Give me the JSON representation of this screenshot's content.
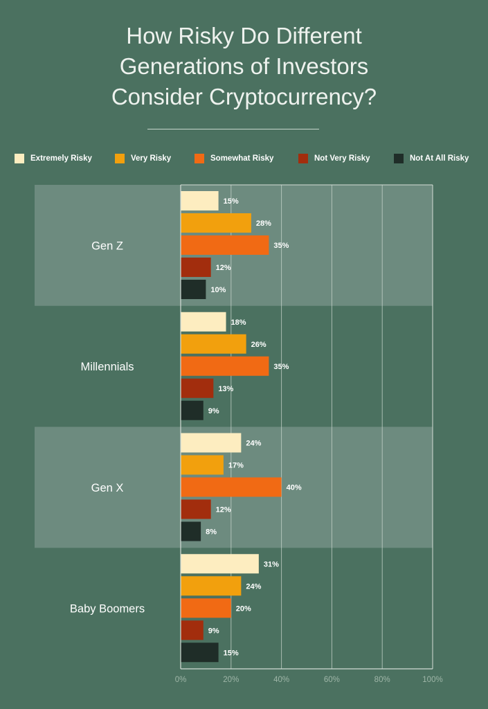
{
  "title_lines": [
    "How Risky Do Different",
    "Generations of Investors",
    "Consider Cryptocurrency?"
  ],
  "colors": {
    "background": "#4b7160",
    "band": "#6d8b7f",
    "Extremely Risky": "#fdedc0",
    "Very Risky": "#f2a00d",
    "Somewhat Risky": "#f16a14",
    "Not Very Risky": "#a22d0d",
    "Not At All Risky": "#1f2d28"
  },
  "legend": [
    {
      "label": "Extremely Risky",
      "icon": "square-swatch"
    },
    {
      "label": "Very Risky",
      "icon": "square-swatch"
    },
    {
      "label": "Somewhat Risky",
      "icon": "square-swatch"
    },
    {
      "label": "Not Very Risky",
      "icon": "square-swatch"
    },
    {
      "label": "Not At All Risky",
      "icon": "square-swatch"
    }
  ],
  "chart_data": {
    "type": "bar",
    "orientation": "horizontal",
    "title": "How Risky Do Different Generations of Investors Consider Cryptocurrency?",
    "categories": [
      "Gen Z",
      "Millennials",
      "Gen X",
      "Baby Boomers"
    ],
    "series": [
      {
        "name": "Extremely Risky",
        "values": [
          15,
          18,
          24,
          31
        ]
      },
      {
        "name": "Very Risky",
        "values": [
          28,
          26,
          17,
          24
        ]
      },
      {
        "name": "Somewhat Risky",
        "values": [
          35,
          35,
          40,
          20
        ]
      },
      {
        "name": "Not Very Risky",
        "values": [
          12,
          13,
          12,
          9
        ]
      },
      {
        "name": "Not At All Risky",
        "values": [
          10,
          9,
          8,
          15
        ]
      }
    ],
    "value_suffix": "%",
    "xlim": [
      0,
      100
    ],
    "xticks": [
      0,
      20,
      40,
      60,
      80,
      100
    ],
    "xtick_labels": [
      "0%",
      "20%",
      "40%",
      "60%",
      "80%",
      "100%"
    ],
    "grid": true,
    "legend_position": "top"
  }
}
